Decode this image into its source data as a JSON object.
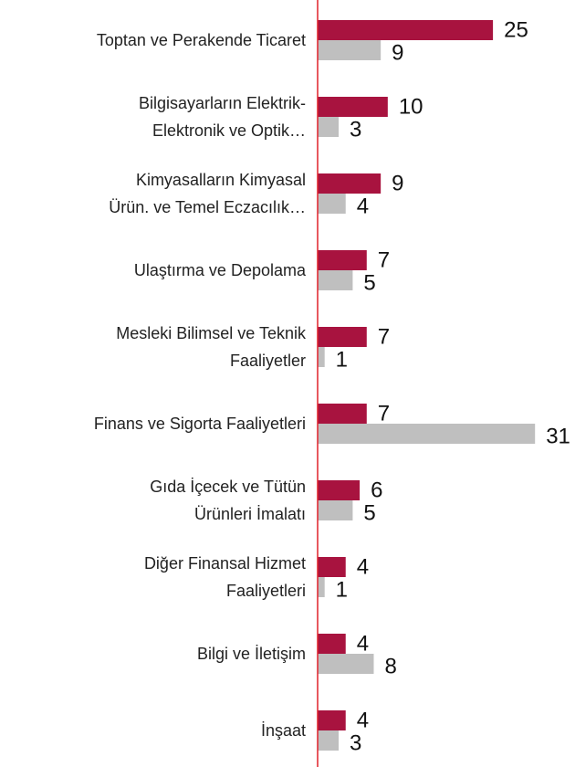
{
  "chart_data": {
    "type": "barh",
    "categories": [
      "Toptan ve Perakende Ticaret",
      "Bilgisayarların Elektrik-\nElektronik ve Optik…",
      "Kimyasalların Kimyasal\nÜrün. ve Temel Eczacılık…",
      "Ulaştırma ve Depolama",
      "Mesleki Bilimsel ve Teknik\nFaaliyetler",
      "Finans ve Sigorta Faaliyetleri",
      "Gıda İçecek ve Tütün\nÜrünleri İmalatı",
      "Diğer Finansal Hizmet\nFaaliyetleri",
      "Bilgi ve İletişim",
      "İnşaat"
    ],
    "series": [
      {
        "color": "#a8133f",
        "values": [
          25,
          10,
          9,
          7,
          7,
          7,
          6,
          4,
          4,
          4
        ]
      },
      {
        "color": "#bfbfbf",
        "values": [
          9,
          3,
          4,
          5,
          1,
          31,
          5,
          1,
          8,
          3
        ]
      }
    ],
    "xlim": [
      0,
      36.7
    ],
    "axis_color": "#e0202a"
  }
}
